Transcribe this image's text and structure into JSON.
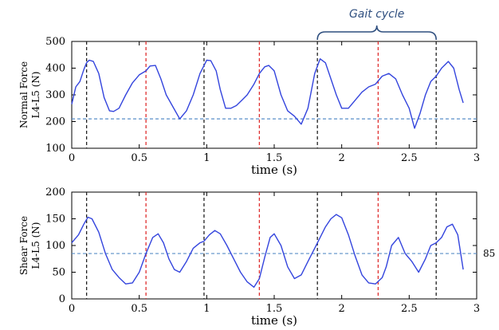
{
  "annotation": {
    "label": "Gait cycle",
    "color": "#2f4f7f",
    "x_start": 1.82,
    "x_end": 2.7
  },
  "chart_data": [
    {
      "type": "line",
      "xlabel": "time (s)",
      "ylabel_lines": [
        "Normal Force",
        "L4-L5 (N)"
      ],
      "xlim": [
        0,
        3
      ],
      "ylim": [
        100,
        500
      ],
      "xticks": [
        "0",
        "0.5",
        "1",
        "1.5",
        "2",
        "2.5",
        "3"
      ],
      "yticks": [
        "100",
        "200",
        "300",
        "400",
        "500"
      ],
      "grid": false,
      "line_color": "#3344dd",
      "threshold": {
        "value": 210,
        "label": "",
        "color": "#5a8fc8"
      },
      "markers": {
        "black": [
          0.11,
          0.98,
          1.82,
          2.7
        ],
        "red": [
          0.55,
          1.39,
          2.27
        ],
        "black_color": "#222222",
        "red_color": "#e03030"
      },
      "series": [
        {
          "x": [
            0.0,
            0.03,
            0.06,
            0.09,
            0.11,
            0.13,
            0.16,
            0.2,
            0.24,
            0.28,
            0.31,
            0.35,
            0.4,
            0.45,
            0.5,
            0.55,
            0.58,
            0.62,
            0.66,
            0.7,
            0.75,
            0.8,
            0.85,
            0.9,
            0.95,
            1.0,
            1.03,
            1.07,
            1.1,
            1.14,
            1.18,
            1.22,
            1.26,
            1.3,
            1.35,
            1.39,
            1.43,
            1.46,
            1.5,
            1.55,
            1.6,
            1.65,
            1.7,
            1.75,
            1.8,
            1.84,
            1.88,
            1.92,
            1.96,
            2.0,
            2.05,
            2.1,
            2.15,
            2.2,
            2.25,
            2.3,
            2.35,
            2.4,
            2.45,
            2.5,
            2.54,
            2.58,
            2.62,
            2.66,
            2.7,
            2.74,
            2.79,
            2.83,
            2.87,
            2.9
          ],
          "y": [
            265,
            330,
            350,
            395,
            420,
            430,
            425,
            380,
            290,
            240,
            238,
            250,
            300,
            345,
            375,
            390,
            408,
            410,
            360,
            300,
            255,
            210,
            240,
            300,
            380,
            430,
            428,
            390,
            320,
            250,
            250,
            260,
            280,
            300,
            340,
            380,
            405,
            410,
            390,
            300,
            240,
            220,
            190,
            250,
            380,
            435,
            420,
            360,
            300,
            250,
            250,
            280,
            310,
            330,
            340,
            370,
            380,
            360,
            300,
            250,
            175,
            230,
            300,
            350,
            370,
            400,
            425,
            400,
            320,
            270
          ]
        }
      ]
    },
    {
      "type": "line",
      "xlabel": "time (s)",
      "ylabel_lines": [
        "Shear Force",
        "L4-L5 (N)"
      ],
      "xlim": [
        0,
        3
      ],
      "ylim": [
        0,
        200
      ],
      "xticks": [
        "0",
        "0.5",
        "1",
        "1.5",
        "2",
        "2.5",
        "3"
      ],
      "yticks": [
        "0",
        "50",
        "100",
        "150",
        "200"
      ],
      "grid": false,
      "line_color": "#3344dd",
      "threshold": {
        "value": 85,
        "label": "85",
        "color": "#5a8fc8"
      },
      "markers": {
        "black": [
          0.11,
          0.98,
          1.82,
          2.7
        ],
        "red": [
          0.55,
          1.39,
          2.27
        ],
        "black_color": "#222222",
        "red_color": "#e03030"
      },
      "series": [
        {
          "x": [
            0.0,
            0.05,
            0.09,
            0.12,
            0.15,
            0.2,
            0.25,
            0.3,
            0.35,
            0.4,
            0.45,
            0.5,
            0.55,
            0.6,
            0.64,
            0.68,
            0.72,
            0.76,
            0.8,
            0.85,
            0.9,
            0.95,
            0.98,
            1.02,
            1.06,
            1.1,
            1.15,
            1.2,
            1.25,
            1.3,
            1.35,
            1.39,
            1.43,
            1.47,
            1.5,
            1.55,
            1.6,
            1.65,
            1.7,
            1.75,
            1.8,
            1.84,
            1.88,
            1.92,
            1.96,
            2.0,
            2.05,
            2.1,
            2.15,
            2.2,
            2.25,
            2.3,
            2.33,
            2.37,
            2.42,
            2.47,
            2.52,
            2.57,
            2.62,
            2.66,
            2.7,
            2.74,
            2.78,
            2.82,
            2.86,
            2.9
          ],
          "y": [
            105,
            120,
            140,
            153,
            150,
            125,
            85,
            55,
            40,
            28,
            30,
            50,
            85,
            115,
            122,
            105,
            75,
            55,
            50,
            70,
            95,
            105,
            108,
            120,
            128,
            122,
            100,
            75,
            50,
            32,
            22,
            38,
            78,
            115,
            122,
            100,
            60,
            38,
            45,
            70,
            95,
            115,
            135,
            150,
            158,
            152,
            120,
            80,
            45,
            30,
            28,
            40,
            60,
            100,
            115,
            85,
            70,
            50,
            75,
            100,
            105,
            115,
            135,
            140,
            120,
            55
          ]
        }
      ]
    }
  ]
}
